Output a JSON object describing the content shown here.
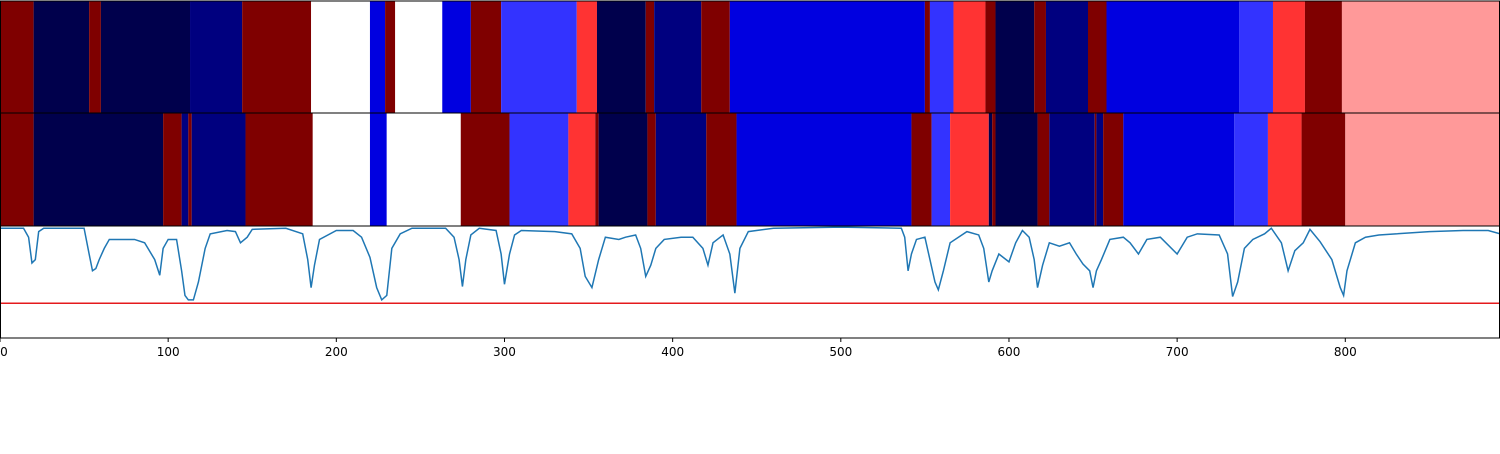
{
  "chart_data": [
    {
      "type": "segments",
      "xlim": [
        0,
        892
      ],
      "bounds": [
        0,
        20,
        53,
        60,
        113,
        144,
        185,
        220,
        229,
        235,
        263,
        280,
        298,
        343,
        355,
        384,
        389,
        417,
        434,
        550,
        553,
        567,
        586,
        592,
        615,
        622,
        647,
        658,
        737,
        757,
        776,
        798,
        892
      ],
      "colors": [
        "#7f0000",
        "#00004c",
        "#7f0000",
        "#00004c",
        "#00007f",
        "#7f0000",
        "#ffffff",
        "#0000e0",
        "#7f0000",
        "#ffffff",
        "#0000e0",
        "#7f0000",
        "#3333ff",
        "#ff3333",
        "#00004c",
        "#7f0000",
        "#00007f",
        "#7f0000",
        "#0000e0",
        "#7f0000",
        "#3333ff",
        "#ff3333",
        "#7f0000",
        "#00004c",
        "#7f0000",
        "#00007f",
        "#7f0000",
        "#0000e0",
        "#3333ff",
        "#ff3333",
        "#7f0000",
        "#ff9999"
      ]
    },
    {
      "type": "segments",
      "xlim": [
        0,
        892
      ],
      "bounds": [
        0,
        20,
        97,
        108,
        112,
        114,
        146,
        186,
        220,
        230,
        274,
        303,
        338,
        354,
        356,
        385,
        390,
        420,
        438,
        542,
        554,
        565,
        588,
        590,
        592,
        617,
        624,
        651,
        652,
        656,
        668,
        734,
        754,
        774,
        800,
        892
      ],
      "colors": [
        "#7f0000",
        "#00004c",
        "#7f0000",
        "#00007f",
        "#7f0000",
        "#00007f",
        "#7f0000",
        "#ffffff",
        "#0000e0",
        "#ffffff",
        "#7f0000",
        "#3333ff",
        "#ff3333",
        "#7f0000",
        "#00004c",
        "#7f0000",
        "#00007f",
        "#7f0000",
        "#0000e0",
        "#7f0000",
        "#3333ff",
        "#ff3333",
        "#00004c",
        "#7f0000",
        "#00004c",
        "#7f0000",
        "#00007f",
        "#7f0000",
        "#00007f",
        "#7f0000",
        "#0000e0",
        "#3333ff",
        "#ff3333",
        "#7f0000",
        "#ff9999"
      ]
    },
    {
      "type": "line",
      "xlim": [
        0,
        892
      ],
      "ylim": [
        0,
        1
      ],
      "color": "#1f77b4",
      "threshold": 0.31,
      "threshold_color": "#e41a1c",
      "xticks": [
        0,
        100,
        200,
        300,
        400,
        500,
        600,
        700,
        800
      ],
      "x": [
        0,
        14,
        17,
        19,
        21,
        23,
        26,
        50,
        53,
        55,
        57,
        59,
        62,
        65,
        80,
        86,
        92,
        95,
        97,
        100,
        105,
        108,
        110,
        112,
        115,
        118,
        122,
        125,
        135,
        140,
        143,
        147,
        150,
        170,
        180,
        183,
        185,
        187,
        190,
        200,
        210,
        215,
        220,
        224,
        227,
        230,
        233,
        238,
        245,
        265,
        270,
        273,
        275,
        277,
        280,
        285,
        295,
        298,
        300,
        303,
        306,
        310,
        330,
        340,
        345,
        348,
        352,
        356,
        360,
        368,
        372,
        378,
        381,
        384,
        387,
        390,
        395,
        405,
        412,
        418,
        421,
        424,
        430,
        434,
        437,
        440,
        445,
        460,
        500,
        536,
        538,
        540,
        542,
        545,
        550,
        553,
        556,
        558,
        561,
        565,
        575,
        582,
        585,
        588,
        590,
        594,
        600,
        604,
        608,
        612,
        615,
        617,
        620,
        624,
        630,
        636,
        640,
        644,
        648,
        650,
        652,
        655,
        660,
        668,
        672,
        677,
        682,
        690,
        700,
        706,
        712,
        725,
        730,
        733,
        736,
        740,
        745,
        752,
        756,
        762,
        766,
        770,
        775,
        779,
        785,
        792,
        797,
        799,
        801,
        806,
        812,
        820,
        830,
        850,
        870,
        885,
        892
      ],
      "values": [
        0.98,
        0.98,
        0.9,
        0.67,
        0.7,
        0.95,
        0.98,
        0.98,
        0.75,
        0.6,
        0.62,
        0.7,
        0.8,
        0.88,
        0.88,
        0.85,
        0.7,
        0.56,
        0.8,
        0.88,
        0.88,
        0.6,
        0.38,
        0.34,
        0.34,
        0.5,
        0.8,
        0.93,
        0.96,
        0.95,
        0.85,
        0.9,
        0.97,
        0.98,
        0.93,
        0.7,
        0.45,
        0.65,
        0.88,
        0.96,
        0.96,
        0.9,
        0.72,
        0.45,
        0.34,
        0.38,
        0.8,
        0.93,
        0.98,
        0.98,
        0.9,
        0.7,
        0.46,
        0.7,
        0.92,
        0.98,
        0.96,
        0.75,
        0.48,
        0.75,
        0.92,
        0.96,
        0.95,
        0.93,
        0.8,
        0.55,
        0.45,
        0.7,
        0.9,
        0.88,
        0.9,
        0.92,
        0.8,
        0.55,
        0.65,
        0.8,
        0.88,
        0.9,
        0.9,
        0.8,
        0.65,
        0.85,
        0.92,
        0.75,
        0.4,
        0.8,
        0.95,
        0.98,
        0.99,
        0.98,
        0.9,
        0.6,
        0.75,
        0.88,
        0.9,
        0.7,
        0.5,
        0.43,
        0.6,
        0.85,
        0.95,
        0.92,
        0.8,
        0.5,
        0.6,
        0.75,
        0.68,
        0.85,
        0.96,
        0.9,
        0.7,
        0.45,
        0.65,
        0.85,
        0.82,
        0.85,
        0.75,
        0.66,
        0.6,
        0.45,
        0.6,
        0.7,
        0.88,
        0.9,
        0.85,
        0.75,
        0.88,
        0.9,
        0.75,
        0.9,
        0.93,
        0.92,
        0.75,
        0.37,
        0.5,
        0.8,
        0.88,
        0.93,
        0.98,
        0.85,
        0.6,
        0.78,
        0.85,
        0.97,
        0.86,
        0.7,
        0.45,
        0.38,
        0.6,
        0.85,
        0.9,
        0.92,
        0.93,
        0.95,
        0.96,
        0.96,
        0.93
      ]
    }
  ]
}
